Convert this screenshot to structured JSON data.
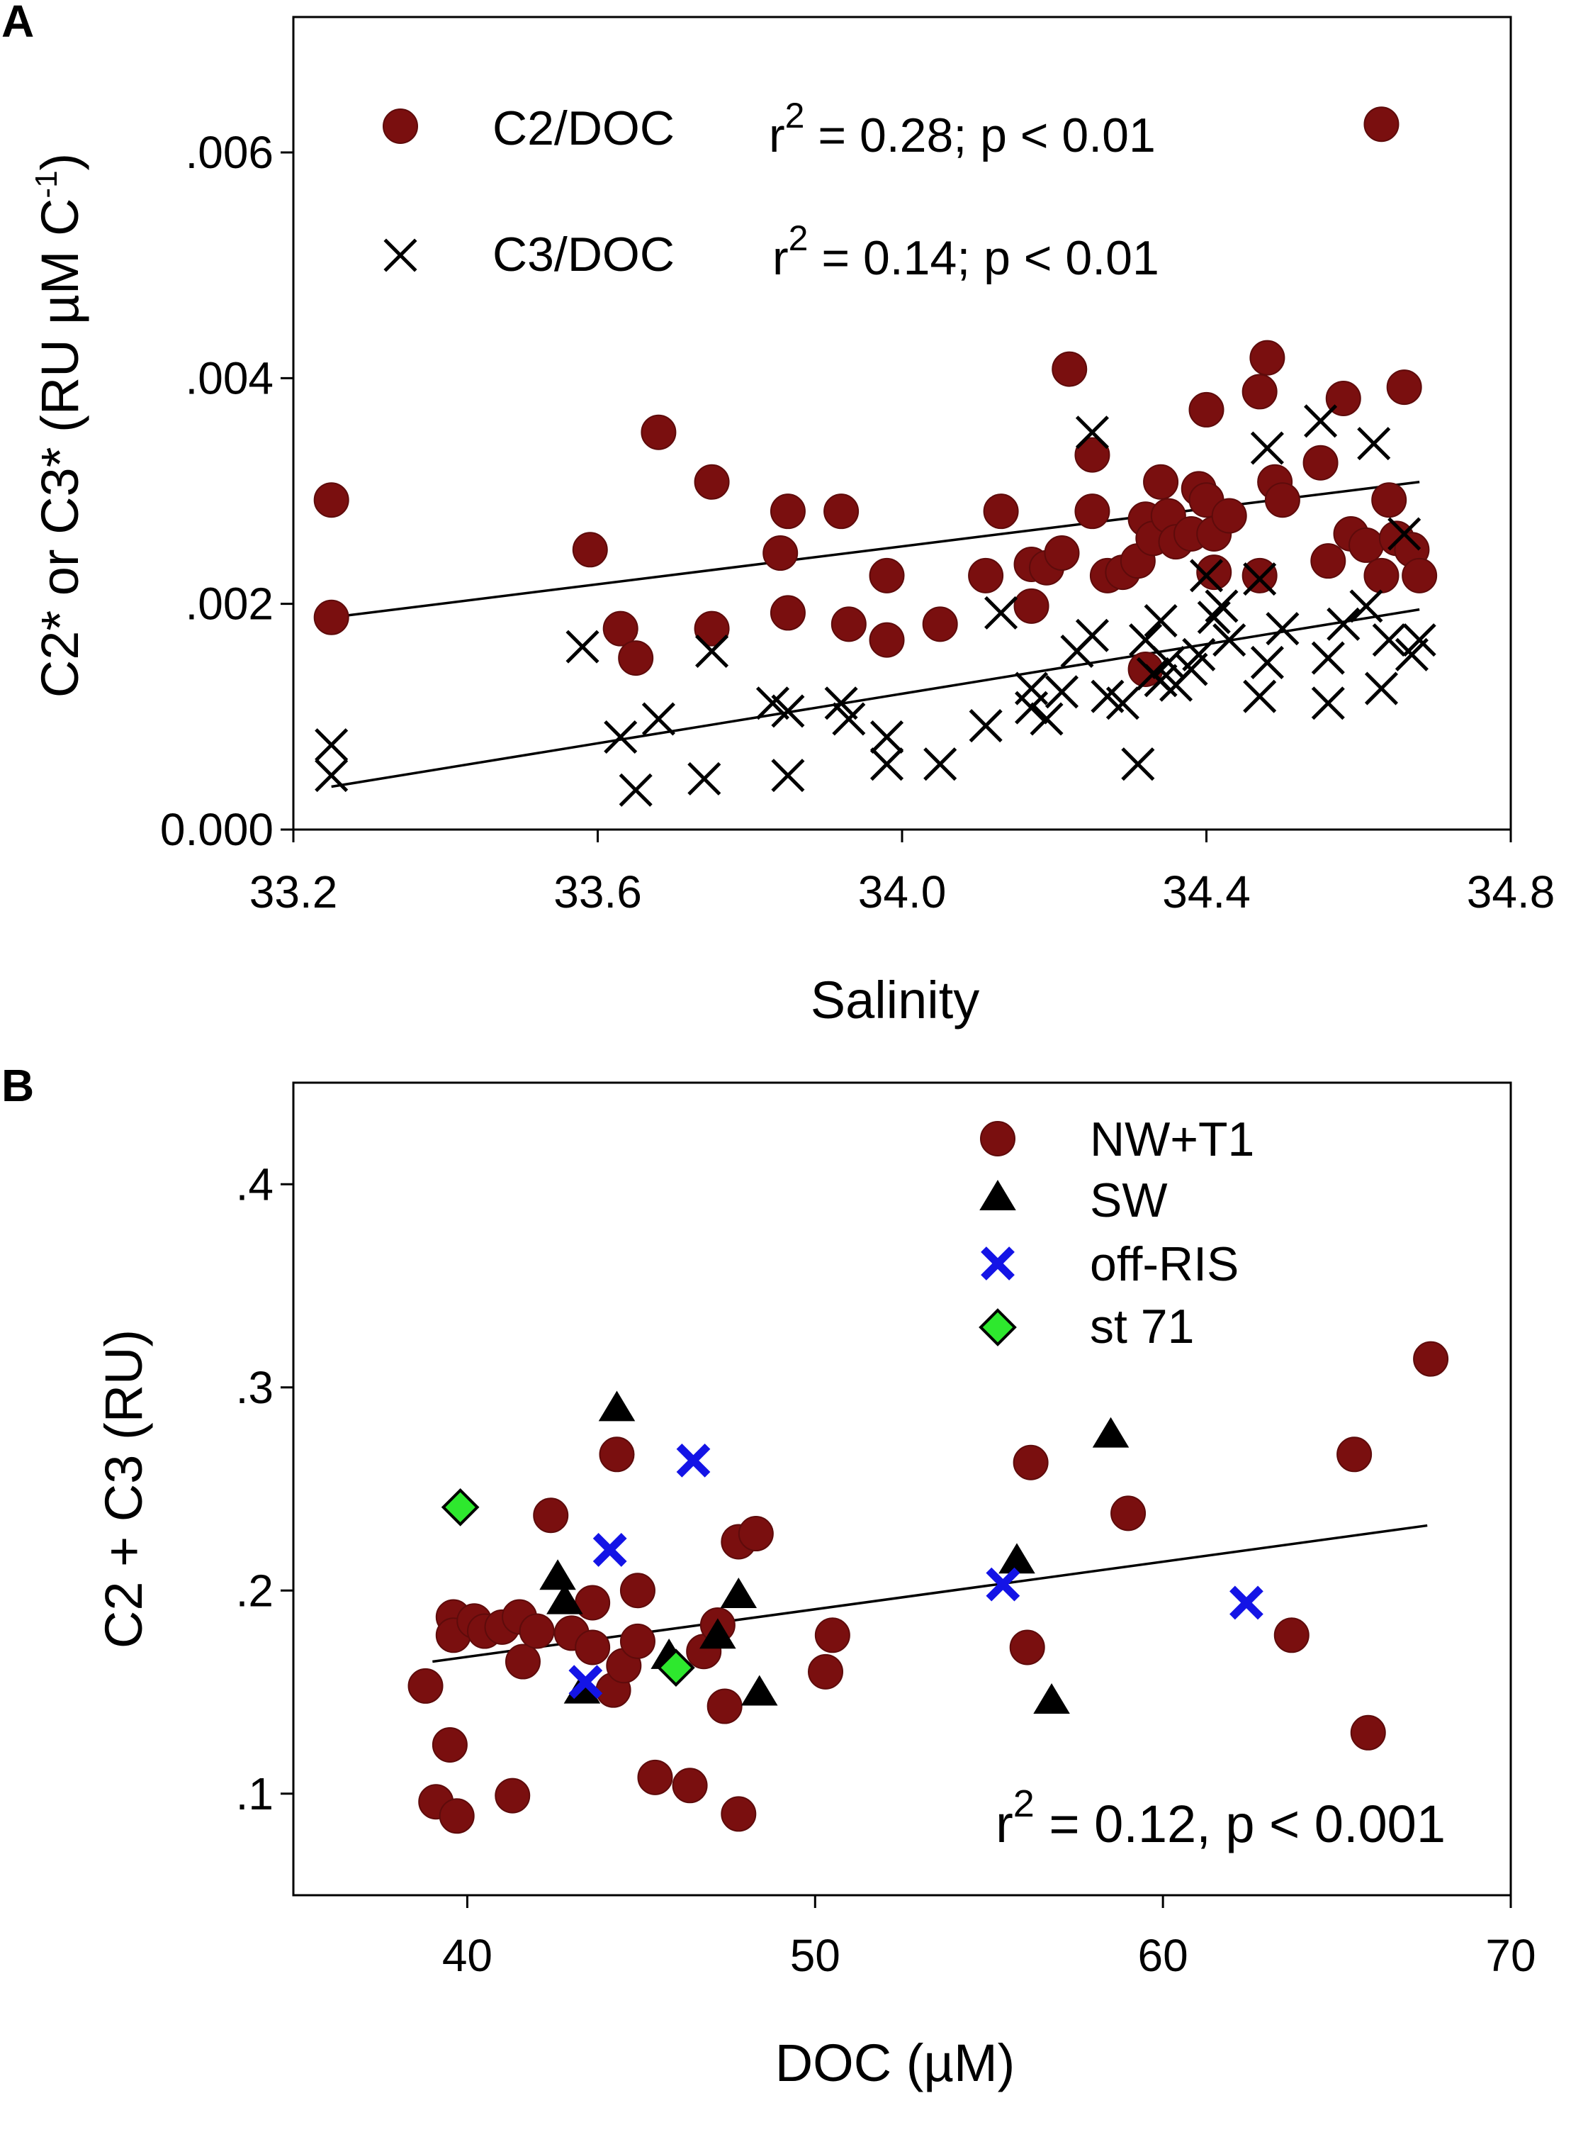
{
  "chart_data": [
    {
      "panel": "A",
      "type": "scatter",
      "xlabel": "Salinity",
      "ylabel": "C2* or C3* (RU µM C",
      "ylabel_sup": "-1",
      "ylabel_close": ")",
      "xlim": [
        33.2,
        34.8
      ],
      "ylim": [
        0.0,
        0.0072
      ],
      "xticks": [
        33.2,
        33.6,
        34.0,
        34.4,
        34.8
      ],
      "xtick_labels": [
        "33.2",
        "33.6",
        "34.0",
        "34.4",
        "34.8"
      ],
      "yticks": [
        0.0,
        0.002,
        0.004,
        0.006
      ],
      "ytick_labels": [
        "0.000",
        ".002",
        ".004",
        ".006"
      ],
      "legend": [
        {
          "name": "C2/DOC",
          "marker": "circle",
          "stat_prefix": "r",
          "stat_sup": "2",
          "stat_rest": " = 0.28; p < 0.01"
        },
        {
          "name": "C3/DOC",
          "marker": "x",
          "stat_prefix": "r",
          "stat_sup": "2",
          "stat_rest": " = 0.14; p < 0.01"
        }
      ],
      "series": [
        {
          "name": "C2/DOC",
          "marker": "circle",
          "color": "#7a0f0f",
          "fit": {
            "x": [
              33.25,
              34.68
            ],
            "y": [
              0.00188,
              0.00308
            ]
          },
          "points": [
            [
              33.25,
              0.00292
            ],
            [
              33.25,
              0.00188
            ],
            [
              33.59,
              0.00248
            ],
            [
              33.63,
              0.00178
            ],
            [
              33.65,
              0.00152
            ],
            [
              33.68,
              0.00352
            ],
            [
              33.75,
              0.00178
            ],
            [
              33.75,
              0.00308
            ],
            [
              33.84,
              0.00245
            ],
            [
              33.85,
              0.00282
            ],
            [
              33.85,
              0.00192
            ],
            [
              33.92,
              0.00282
            ],
            [
              33.93,
              0.00182
            ],
            [
              33.98,
              0.00225
            ],
            [
              33.98,
              0.00168
            ],
            [
              34.05,
              0.00182
            ],
            [
              34.11,
              0.00225
            ],
            [
              34.13,
              0.00282
            ],
            [
              34.17,
              0.00235
            ],
            [
              34.17,
              0.00198
            ],
            [
              34.19,
              0.00232
            ],
            [
              34.21,
              0.00245
            ],
            [
              34.22,
              0.00408
            ],
            [
              34.25,
              0.00332
            ],
            [
              34.25,
              0.00282
            ],
            [
              34.27,
              0.00225
            ],
            [
              34.29,
              0.00228
            ],
            [
              34.31,
              0.00238
            ],
            [
              34.32,
              0.00142
            ],
            [
              34.32,
              0.00275
            ],
            [
              34.33,
              0.00258
            ],
            [
              34.34,
              0.00308
            ],
            [
              34.35,
              0.00278
            ],
            [
              34.36,
              0.00255
            ],
            [
              34.38,
              0.00262
            ],
            [
              34.39,
              0.00302
            ],
            [
              34.4,
              0.00292
            ],
            [
              34.4,
              0.00372
            ],
            [
              34.41,
              0.00262
            ],
            [
              34.41,
              0.00228
            ],
            [
              34.43,
              0.00278
            ],
            [
              34.47,
              0.00225
            ],
            [
              34.47,
              0.00388
            ],
            [
              34.48,
              0.00418
            ],
            [
              34.49,
              0.00308
            ],
            [
              34.5,
              0.00292
            ],
            [
              34.55,
              0.00325
            ],
            [
              34.56,
              0.00238
            ],
            [
              34.58,
              0.00382
            ],
            [
              34.59,
              0.00262
            ],
            [
              34.61,
              0.00252
            ],
            [
              34.63,
              0.00225
            ],
            [
              34.64,
              0.00292
            ],
            [
              34.65,
              0.00258
            ],
            [
              34.66,
              0.00392
            ],
            [
              34.67,
              0.00248
            ],
            [
              34.68,
              0.00225
            ],
            [
              34.63,
              0.00625
            ]
          ]
        },
        {
          "name": "C3/DOC",
          "marker": "x",
          "color": "#000000",
          "fit": {
            "x": [
              33.25,
              34.68
            ],
            "y": [
              0.00038,
              0.00195
            ]
          },
          "points": [
            [
              33.25,
              0.00075
            ],
            [
              33.25,
              0.00048
            ],
            [
              33.58,
              0.00162
            ],
            [
              33.63,
              0.00082
            ],
            [
              33.65,
              0.00035
            ],
            [
              33.68,
              0.00098
            ],
            [
              33.74,
              0.00045
            ],
            [
              33.75,
              0.00158
            ],
            [
              33.83,
              0.00112
            ],
            [
              33.85,
              0.00105
            ],
            [
              33.85,
              0.00048
            ],
            [
              33.92,
              0.00112
            ],
            [
              33.93,
              0.00098
            ],
            [
              33.98,
              0.00082
            ],
            [
              33.98,
              0.00058
            ],
            [
              34.05,
              0.00058
            ],
            [
              34.11,
              0.00092
            ],
            [
              34.13,
              0.00192
            ],
            [
              34.17,
              0.00108
            ],
            [
              34.17,
              0.00125
            ],
            [
              34.19,
              0.00098
            ],
            [
              34.21,
              0.00122
            ],
            [
              34.23,
              0.00158
            ],
            [
              34.25,
              0.00352
            ],
            [
              34.25,
              0.00172
            ],
            [
              34.27,
              0.00118
            ],
            [
              34.29,
              0.00112
            ],
            [
              34.31,
              0.00058
            ],
            [
              34.32,
              0.00168
            ],
            [
              34.33,
              0.00138
            ],
            [
              34.34,
              0.00132
            ],
            [
              34.34,
              0.00185
            ],
            [
              34.35,
              0.00148
            ],
            [
              34.36,
              0.00128
            ],
            [
              34.38,
              0.00142
            ],
            [
              34.39,
              0.00155
            ],
            [
              34.4,
              0.00225
            ],
            [
              34.41,
              0.00188
            ],
            [
              34.42,
              0.00198
            ],
            [
              34.43,
              0.00168
            ],
            [
              34.47,
              0.00222
            ],
            [
              34.47,
              0.00118
            ],
            [
              34.48,
              0.00148
            ],
            [
              34.48,
              0.00338
            ],
            [
              34.5,
              0.00178
            ],
            [
              34.55,
              0.00362
            ],
            [
              34.56,
              0.00152
            ],
            [
              34.56,
              0.00112
            ],
            [
              34.58,
              0.00182
            ],
            [
              34.61,
              0.00198
            ],
            [
              34.62,
              0.00342
            ],
            [
              34.63,
              0.00125
            ],
            [
              34.64,
              0.00168
            ],
            [
              34.66,
              0.00262
            ],
            [
              34.67,
              0.00155
            ],
            [
              34.68,
              0.00168
            ]
          ]
        }
      ]
    },
    {
      "panel": "B",
      "type": "scatter",
      "xlabel": "DOC (µM)",
      "ylabel": "C2 + C3 (RU)",
      "xlim": [
        35,
        70
      ],
      "ylim": [
        0.05,
        0.45
      ],
      "xticks": [
        40,
        50,
        60,
        70
      ],
      "xtick_labels": [
        "40",
        "50",
        "60",
        "70"
      ],
      "yticks": [
        0.1,
        0.2,
        0.3,
        0.4
      ],
      "ytick_labels": [
        ".1",
        ".2",
        ".3",
        ".4"
      ],
      "stat": {
        "prefix": "r",
        "sup": "2",
        "rest": " = 0.12, p < 0.001"
      },
      "fit": {
        "x": [
          39.0,
          67.6
        ],
        "y": [
          0.165,
          0.232
        ]
      },
      "legend": [
        {
          "name": "NW+T1",
          "marker": "circle"
        },
        {
          "name": "SW",
          "marker": "triangle"
        },
        {
          "name": "off-RIS",
          "marker": "x"
        },
        {
          "name": "st 71",
          "marker": "diamond"
        }
      ],
      "series": [
        {
          "name": "NW+T1",
          "marker": "circle",
          "color": "#7a0f0f",
          "points": [
            [
              38.8,
              0.153
            ],
            [
              39.1,
              0.096
            ],
            [
              39.5,
              0.124
            ],
            [
              39.6,
              0.187
            ],
            [
              39.6,
              0.178
            ],
            [
              39.7,
              0.089
            ],
            [
              40.2,
              0.185
            ],
            [
              40.5,
              0.18
            ],
            [
              41.0,
              0.182
            ],
            [
              41.3,
              0.099
            ],
            [
              41.5,
              0.187
            ],
            [
              41.6,
              0.165
            ],
            [
              42.0,
              0.18
            ],
            [
              42.4,
              0.237
            ],
            [
              43.0,
              0.179
            ],
            [
              43.6,
              0.194
            ],
            [
              43.6,
              0.172
            ],
            [
              44.3,
              0.267
            ],
            [
              44.2,
              0.151
            ],
            [
              44.5,
              0.163
            ],
            [
              44.9,
              0.2
            ],
            [
              44.9,
              0.175
            ],
            [
              45.4,
              0.108
            ],
            [
              46.4,
              0.104
            ],
            [
              46.8,
              0.17
            ],
            [
              47.2,
              0.183
            ],
            [
              47.4,
              0.143
            ],
            [
              47.8,
              0.224
            ],
            [
              48.3,
              0.228
            ],
            [
              47.8,
              0.09
            ],
            [
              50.3,
              0.16
            ],
            [
              50.5,
              0.178
            ],
            [
              56.1,
              0.172
            ],
            [
              56.2,
              0.263
            ],
            [
              59.0,
              0.238
            ],
            [
              63.7,
              0.178
            ],
            [
              65.5,
              0.267
            ],
            [
              65.9,
              0.13
            ],
            [
              67.7,
              0.314
            ]
          ]
        },
        {
          "name": "SW",
          "marker": "triangle",
          "color": "#000000",
          "points": [
            [
              42.6,
              0.207
            ],
            [
              42.8,
              0.195
            ],
            [
              43.3,
              0.151
            ],
            [
              44.3,
              0.29
            ],
            [
              45.8,
              0.168
            ],
            [
              47.2,
              0.178
            ],
            [
              47.8,
              0.198
            ],
            [
              48.4,
              0.15
            ],
            [
              55.8,
              0.215
            ],
            [
              56.8,
              0.146
            ],
            [
              58.5,
              0.277
            ]
          ]
        },
        {
          "name": "off-RIS",
          "marker": "x",
          "color": "#1414e6",
          "points": [
            [
              43.4,
              0.155
            ],
            [
              44.1,
              0.22
            ],
            [
              46.5,
              0.264
            ],
            [
              55.4,
              0.203
            ],
            [
              62.4,
              0.194
            ]
          ]
        },
        {
          "name": "st 71",
          "marker": "diamond",
          "color": "#2ee82e",
          "points": [
            [
              39.8,
              0.241
            ],
            [
              46.0,
              0.162
            ]
          ]
        }
      ]
    }
  ]
}
